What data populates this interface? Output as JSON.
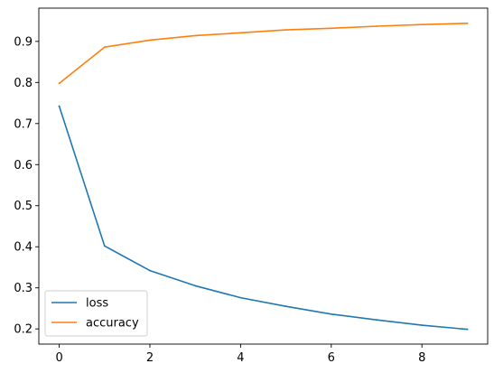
{
  "chart_data": {
    "type": "line",
    "title": "",
    "xlabel": "",
    "ylabel": "",
    "xlim": [
      -0.45,
      9.45
    ],
    "ylim": [
      0.163,
      0.981
    ],
    "x_ticks": [
      0,
      2,
      4,
      6,
      8
    ],
    "y_ticks": [
      0.2,
      0.3,
      0.4,
      0.5,
      0.6,
      0.7,
      0.8,
      0.9
    ],
    "x_tick_labels": [
      "0",
      "2",
      "4",
      "6",
      "8"
    ],
    "y_tick_labels": [
      "0.2",
      "0.3",
      "0.4",
      "0.5",
      "0.6",
      "0.7",
      "0.8",
      "0.9"
    ],
    "grid": false,
    "legend_position": "lower-left",
    "x": [
      0,
      1,
      2,
      3,
      4,
      5,
      6,
      7,
      8,
      9
    ],
    "series": [
      {
        "name": "loss",
        "color": "#1f77b4",
        "values": [
          0.742,
          0.402,
          0.342,
          0.305,
          0.276,
          0.255,
          0.236,
          0.222,
          0.209,
          0.199
        ]
      },
      {
        "name": "accuracy",
        "color": "#ff7f0e",
        "values": [
          0.798,
          0.886,
          0.903,
          0.914,
          0.921,
          0.928,
          0.932,
          0.937,
          0.941,
          0.944
        ]
      }
    ]
  }
}
